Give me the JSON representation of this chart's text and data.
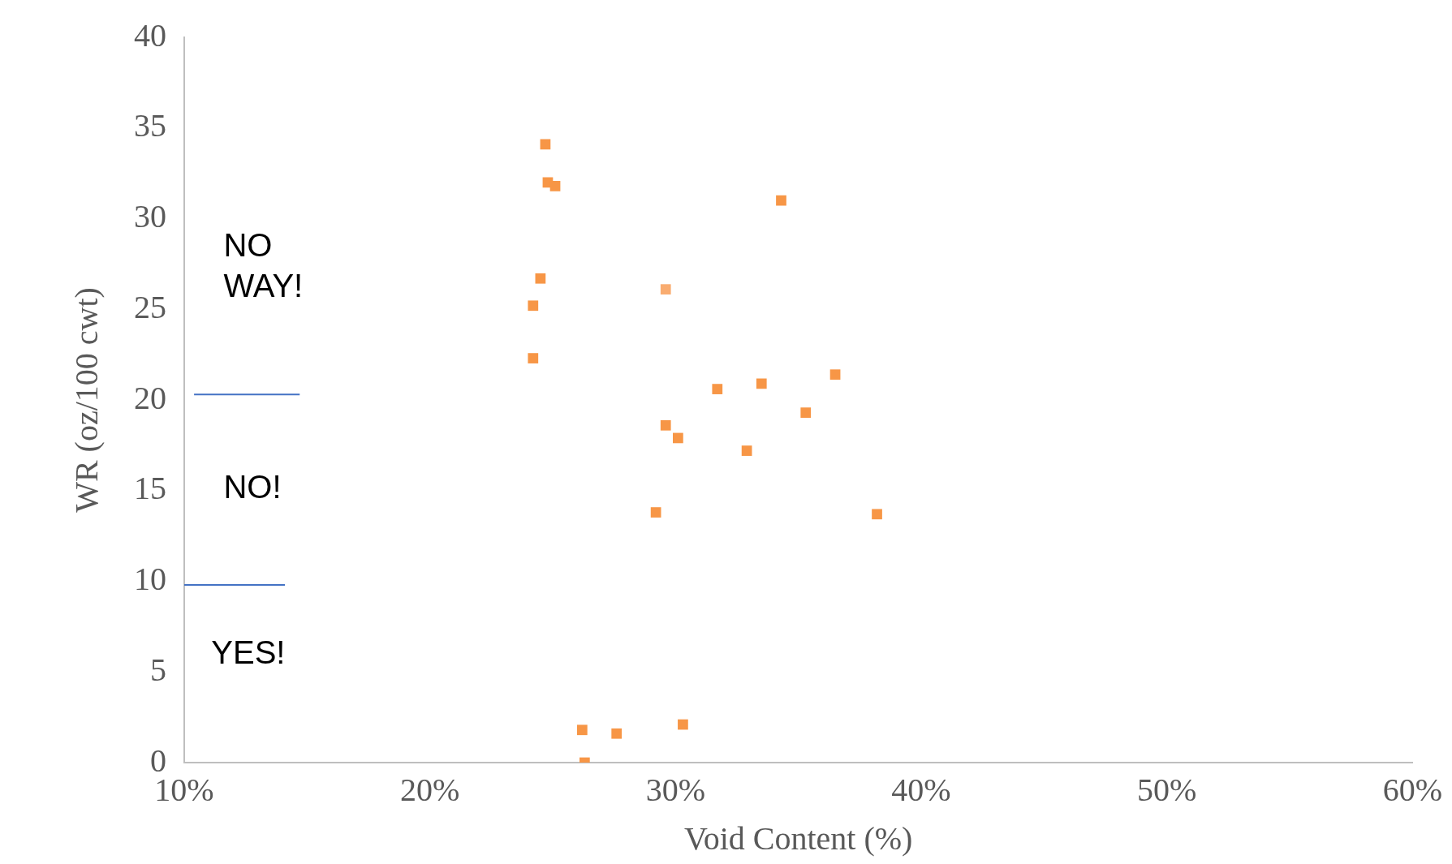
{
  "chart_data": {
    "type": "scatter",
    "xlabel": "Void Content (%)",
    "ylabel": "WR (oz/100 cwt)",
    "xlim": [
      10,
      60
    ],
    "xticks": [
      {
        "value": 10,
        "label": "10%"
      },
      {
        "value": 20,
        "label": "20%"
      },
      {
        "value": 30,
        "label": "30%"
      },
      {
        "value": 40,
        "label": "40%"
      },
      {
        "value": 50,
        "label": "50%"
      },
      {
        "value": 60,
        "label": "60%"
      }
    ],
    "ylim": [
      0,
      40
    ],
    "yticks": [
      0,
      5,
      10,
      15,
      20,
      25,
      30,
      35,
      40
    ],
    "grid": false,
    "legend": false,
    "marker": "square",
    "series": [
      {
        "color": "#f79646",
        "x": [
          24.7,
          24.8,
          25.1,
          34.3,
          24.5,
          29.6,
          24.2,
          24.2,
          31.7,
          33.5,
          36.5,
          35.3,
          29.6,
          30.1,
          32.9,
          29.2,
          38.2,
          26.2,
          27.6,
          30.3,
          26.3
        ],
        "values": [
          34.1,
          32.0,
          31.8,
          31.0,
          26.7,
          26.1,
          25.2,
          22.3,
          20.6,
          20.9,
          21.4,
          19.3,
          18.6,
          17.9,
          17.2,
          13.8,
          13.7,
          1.8,
          1.6,
          2.1,
          0
        ],
        "colors": [
          "#f79646",
          "#f79646",
          "#f79646",
          "#f79646",
          "#f79646",
          "#f9ac70",
          "#f79646",
          "#f79646",
          "#f79646",
          "#f79646",
          "#f79646",
          "#f79646",
          "#f79646",
          "#f79646",
          "#f79646",
          "#f79646",
          "#f79646",
          "#f79646",
          "#f79646",
          "#f79646",
          "#f79646"
        ]
      },
      {
        "type": "line",
        "color": "#4472c4",
        "x": [
          10.4,
          14.7
        ],
        "values": [
          20.3,
          20.3
        ],
        "marker": "none"
      },
      {
        "type": "line",
        "color": "#4472c4",
        "x": [
          10,
          14.1
        ],
        "values": [
          9.8,
          9.8
        ],
        "marker": "none"
      }
    ],
    "annotations": [
      "NO WAY!",
      "NO!",
      "YES!"
    ]
  }
}
